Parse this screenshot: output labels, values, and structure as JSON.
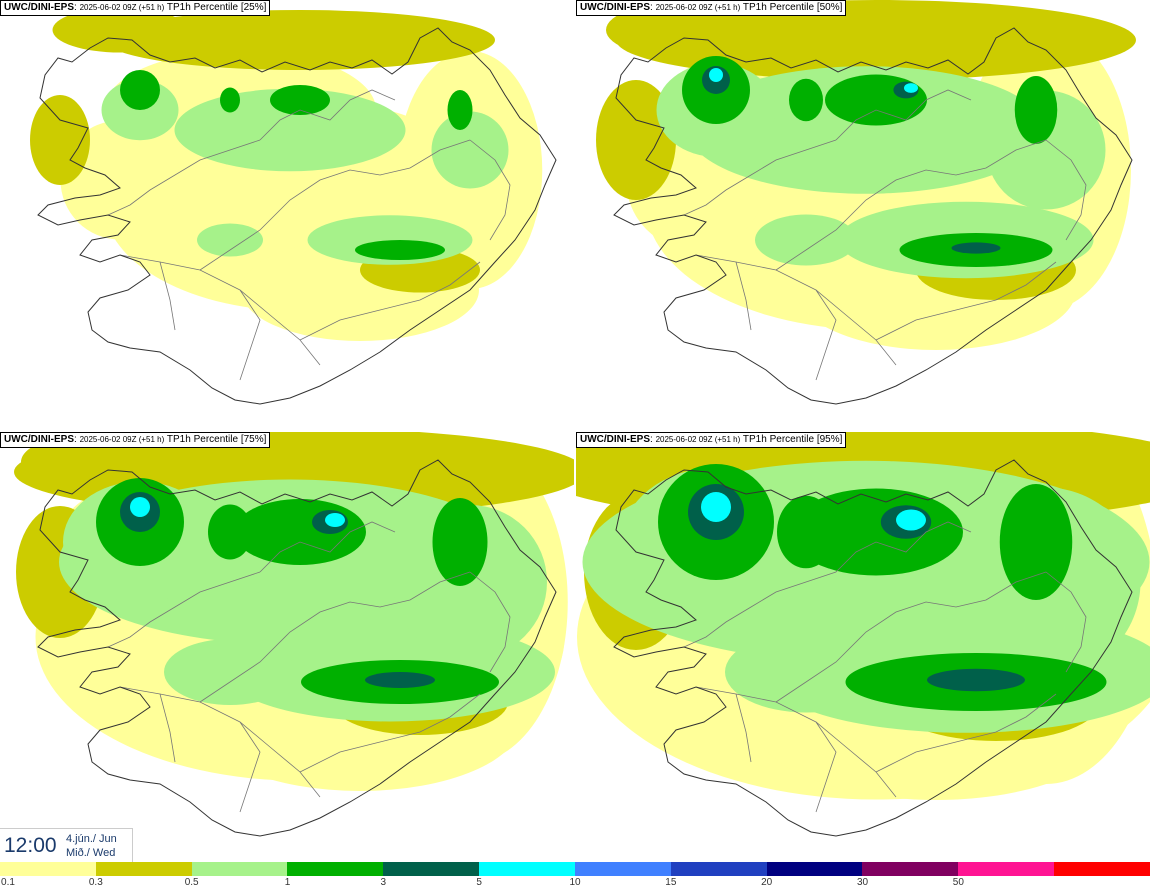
{
  "panels": [
    {
      "source": "UWC/DINI-EPS",
      "run": "2025-06-02 09Z (+51 h)",
      "variable": "TP1h Percentile [25%]",
      "level": 0
    },
    {
      "source": "UWC/DINI-EPS",
      "run": "2025-06-02 09Z (+51 h)",
      "variable": "TP1h Percentile [50%]",
      "level": 1
    },
    {
      "source": "UWC/DINI-EPS",
      "run": "2025-06-02 09Z (+51 h)",
      "variable": "TP1h Percentile [75%]",
      "level": 2
    },
    {
      "source": "UWC/DINI-EPS",
      "run": "2025-06-02 09Z (+51 h)",
      "variable": "TP1h Percentile [95%]",
      "level": 3
    }
  ],
  "valid_time": {
    "time": "12:00",
    "date_line1": "4.jún./ Jun",
    "date_line2": "Mið./ Wed"
  },
  "colorbar": {
    "colors": [
      "#ffff99",
      "#cccc00",
      "#a6f28a",
      "#00b000",
      "#00604a",
      "#00ffff",
      "#4080ff",
      "#2040c0",
      "#000080",
      "#800060",
      "#ff1493",
      "#ff0000"
    ],
    "labels": [
      "0.1",
      "0.3",
      "0.5",
      "1",
      "3",
      "5",
      "10",
      "15",
      "20",
      "30",
      "50"
    ]
  },
  "palette": {
    "yellow": "#ffff99",
    "olive": "#cccc00",
    "light_green": "#a6f28a",
    "green": "#00b000",
    "dark_green": "#00604a",
    "cyan": "#00ffff",
    "coast": "#333333",
    "roads": "#777777"
  }
}
